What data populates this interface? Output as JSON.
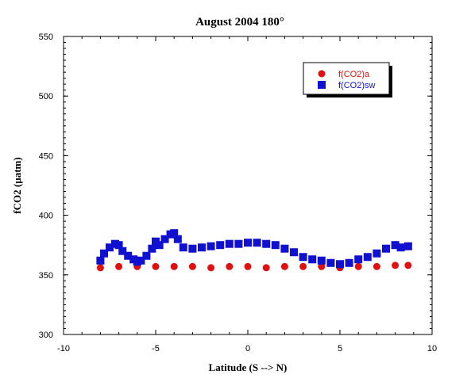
{
  "chart_data": {
    "type": "scatter",
    "title": "August 2004 180°",
    "xlabel": "Latitude (S --> N)",
    "ylabel": "fCO2 (µatm)",
    "xlim": [
      -10,
      10
    ],
    "ylim": [
      300,
      550
    ],
    "xticks": [
      -10,
      -5,
      0,
      5,
      10
    ],
    "yticks": [
      300,
      350,
      400,
      450,
      500,
      550
    ],
    "xtick_labels": [
      "-10",
      "-5",
      "0",
      "5",
      "10"
    ],
    "ytick_labels": [
      "300",
      "350",
      "400",
      "450",
      "500",
      "550"
    ],
    "grid": false,
    "legend_position": "top-right",
    "series": [
      {
        "name": "f(CO2)a",
        "color": "#e01010",
        "marker": "circle",
        "x": [
          -8,
          -7,
          -6,
          -5,
          -4,
          -3,
          -2,
          -1,
          0,
          1,
          2,
          3,
          4,
          5,
          6,
          7,
          8,
          8.7
        ],
        "y": [
          356,
          357,
          357,
          357,
          357,
          357,
          356,
          357,
          357,
          356,
          357,
          357,
          357,
          356,
          357,
          357,
          358,
          358
        ]
      },
      {
        "name": "f(CO2)sw",
        "color": "#1010d0",
        "marker": "square",
        "x": [
          -8,
          -7.8,
          -7.5,
          -7.2,
          -7,
          -6.8,
          -6.5,
          -6.2,
          -6,
          -5.8,
          -5.5,
          -5.2,
          -5,
          -4.8,
          -4.5,
          -4.2,
          -4,
          -3.8,
          -3.5,
          -3,
          -2.5,
          -2,
          -1.5,
          -1,
          -0.5,
          0,
          0.5,
          1,
          1.5,
          2,
          2.5,
          3,
          3.5,
          4,
          4.5,
          5,
          5.5,
          6,
          6.5,
          7,
          7.5,
          8,
          8.3,
          8.7
        ],
        "y": [
          362,
          368,
          373,
          376,
          375,
          370,
          366,
          363,
          361,
          362,
          366,
          372,
          378,
          375,
          380,
          384,
          385,
          380,
          373,
          372,
          373,
          374,
          375,
          376,
          376,
          377,
          377,
          376,
          375,
          372,
          369,
          365,
          363,
          362,
          360,
          359,
          360,
          363,
          365,
          368,
          372,
          375,
          373,
          374
        ]
      }
    ]
  }
}
